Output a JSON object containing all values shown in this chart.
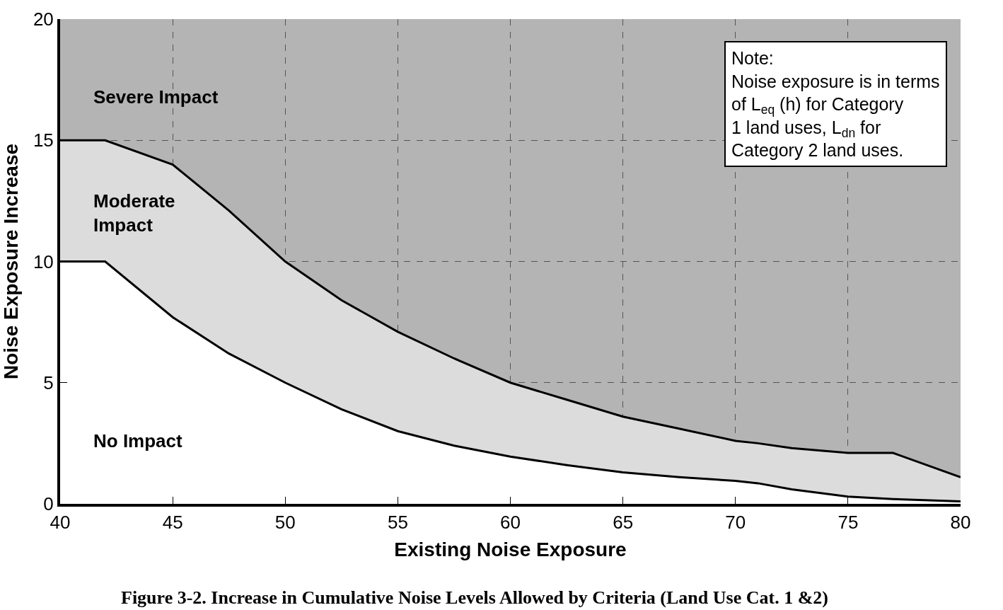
{
  "chart_data": {
    "type": "area",
    "xlabel": "Existing Noise Exposure",
    "ylabel": "Noise Exposure Increase",
    "x": [
      40,
      42,
      45,
      47.5,
      50,
      52.5,
      55,
      57.5,
      60,
      62.5,
      65,
      67.5,
      70,
      71,
      72.5,
      75,
      77,
      80
    ],
    "series": [
      {
        "color": "#ffffff",
        "values": [
          10,
          10,
          7.7,
          6.2,
          5,
          3.9,
          3.0,
          2.4,
          1.95,
          1.6,
          1.3,
          1.1,
          0.95,
          0.85,
          0.6,
          0.3,
          0.2,
          0.1
        ]
      },
      {
        "color": "#dcdcdc",
        "values": [
          15,
          15,
          14.0,
          12.1,
          10,
          8.4,
          7.1,
          6.0,
          5.0,
          4.3,
          3.6,
          3.1,
          2.6,
          2.5,
          2.3,
          2.1,
          2.1,
          1.1
        ]
      }
    ],
    "xlim": [
      40,
      80
    ],
    "xticks": [
      40,
      45,
      50,
      55,
      60,
      65,
      70,
      75,
      80
    ],
    "ylim": [
      0,
      20
    ],
    "yticks": [
      0,
      5,
      10,
      15,
      20
    ],
    "grid": true,
    "line_style": "solid",
    "annotations": [
      "Severe Impact",
      "Moderate\nImpact",
      "No Impact",
      "Note:\nNoise exposure is in terms\nof L$_{eq}$ (h) for Category\n1 land uses, L$_{dn}$ for\nCategory 2 land uses.",
      "Figure 3-2. Increase in Cumulative Noise Levels Allowed by Criteria (Land Use Cat. 1 &2)"
    ]
  }
}
